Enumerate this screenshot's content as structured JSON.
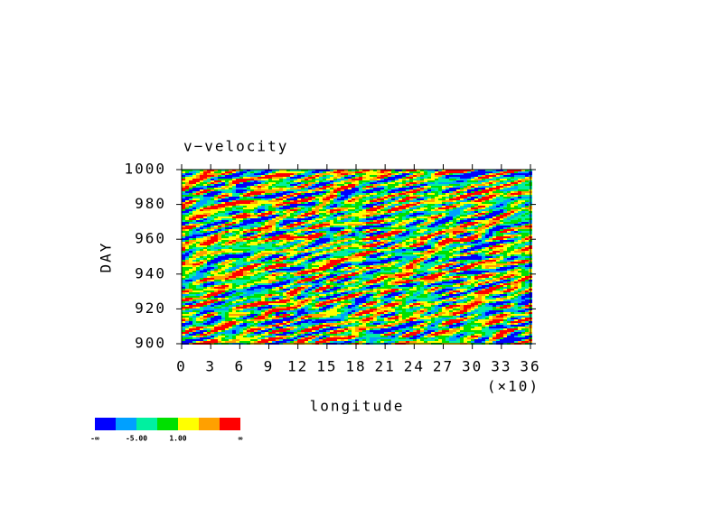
{
  "chart_data": {
    "type": "heatmap",
    "title": "v−velocity",
    "x_label": "longitude",
    "x_multiplier": "(×10)",
    "y_label": "DAY",
    "xlim": [
      0,
      36
    ],
    "xticks": [
      0,
      3,
      6,
      9,
      12,
      15,
      18,
      21,
      24,
      27,
      30,
      33,
      36
    ],
    "ylim": [
      900,
      1000
    ],
    "yticks": [
      900,
      920,
      940,
      960,
      980,
      1000
    ],
    "colorbar": {
      "colors": [
        "#0000ff",
        "#00a0ff",
        "#00f0a0",
        "#00e000",
        "#ffff00",
        "#ffa000",
        "#ff0000"
      ],
      "tick_labels": [
        "-∞",
        "-5.00",
        "1.00",
        "∞"
      ]
    }
  }
}
